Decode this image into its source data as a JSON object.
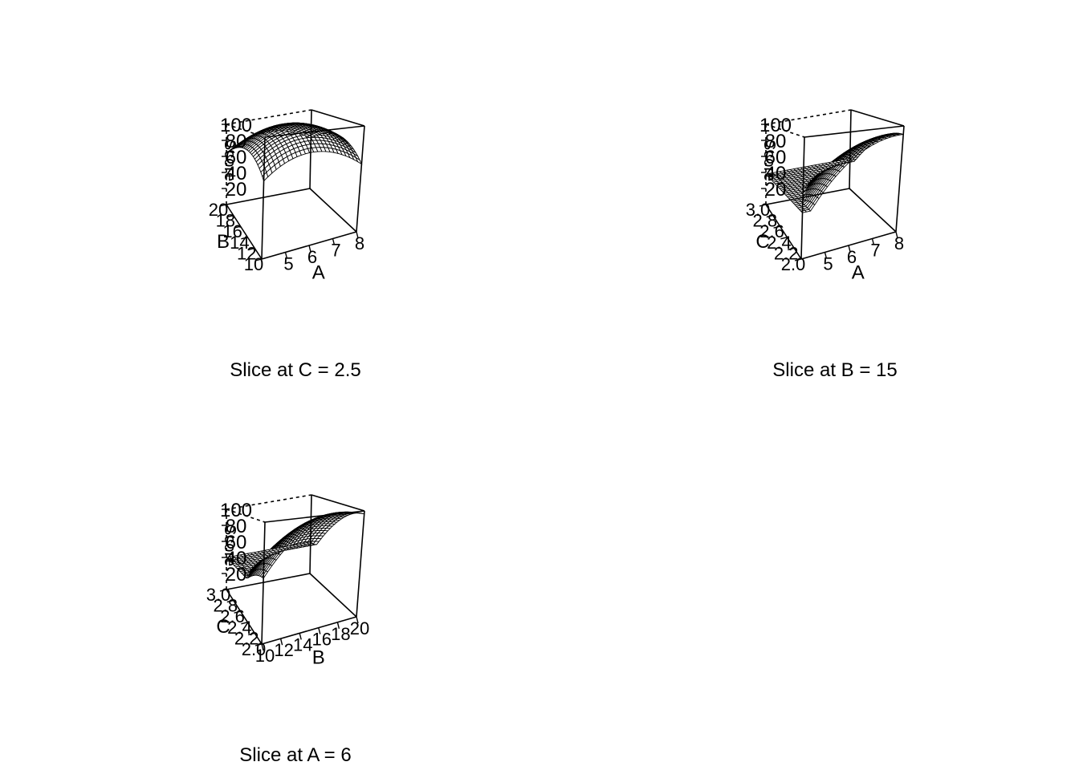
{
  "chart_data": [
    {
      "type": "surface3d",
      "caption": "Slice at C = 2.5",
      "x": {
        "label": "A",
        "range": [
          4,
          8
        ],
        "ticks": [
          "5",
          "6",
          "7",
          "8"
        ]
      },
      "y": {
        "label": "B",
        "range": [
          10,
          20
        ],
        "ticks": [
          "10",
          "12",
          "14",
          "16",
          "18",
          "20"
        ]
      },
      "z": {
        "label": "Score",
        "range": [
          0,
          100
        ],
        "ticks": [
          "20",
          "40",
          "60",
          "80",
          "100"
        ]
      },
      "fixed": {
        "name": "C",
        "value": 2.5
      },
      "surface": {
        "center_x": 6,
        "center_y": 15,
        "peak": 100,
        "edge": 40
      }
    },
    {
      "type": "surface3d",
      "caption": "Slice at B = 15",
      "x": {
        "label": "A",
        "range": [
          4,
          8
        ],
        "ticks": [
          "5",
          "6",
          "7",
          "8"
        ]
      },
      "y": {
        "label": "C",
        "range": [
          2.0,
          3.0
        ],
        "ticks": [
          "2.0",
          "2.2",
          "2.4",
          "2.6",
          "2.8",
          "3.0"
        ]
      },
      "z": {
        "label": "Score",
        "range": [
          0,
          100
        ],
        "ticks": [
          "20",
          "40",
          "60",
          "80",
          "100"
        ]
      },
      "fixed": {
        "name": "B",
        "value": 15
      },
      "surface": {
        "center_x": 8,
        "center_y": 2.0,
        "peak": 92,
        "edge": 38
      }
    },
    {
      "type": "surface3d",
      "caption": "Slice at A = 6",
      "x": {
        "label": "B",
        "range": [
          10,
          20
        ],
        "ticks": [
          "10",
          "12",
          "14",
          "16",
          "18",
          "20"
        ]
      },
      "y": {
        "label": "C",
        "range": [
          2.0,
          3.0
        ],
        "ticks": [
          "2.0",
          "2.2",
          "2.4",
          "2.6",
          "2.8",
          "3.0"
        ]
      },
      "z": {
        "label": "Score",
        "range": [
          0,
          100
        ],
        "ticks": [
          "20",
          "40",
          "60",
          "80",
          "100"
        ]
      },
      "fixed": {
        "name": "A",
        "value": 6
      },
      "surface": {
        "center_x": 18,
        "center_y": 2.0,
        "peak": 100,
        "edge": 40
      }
    }
  ]
}
